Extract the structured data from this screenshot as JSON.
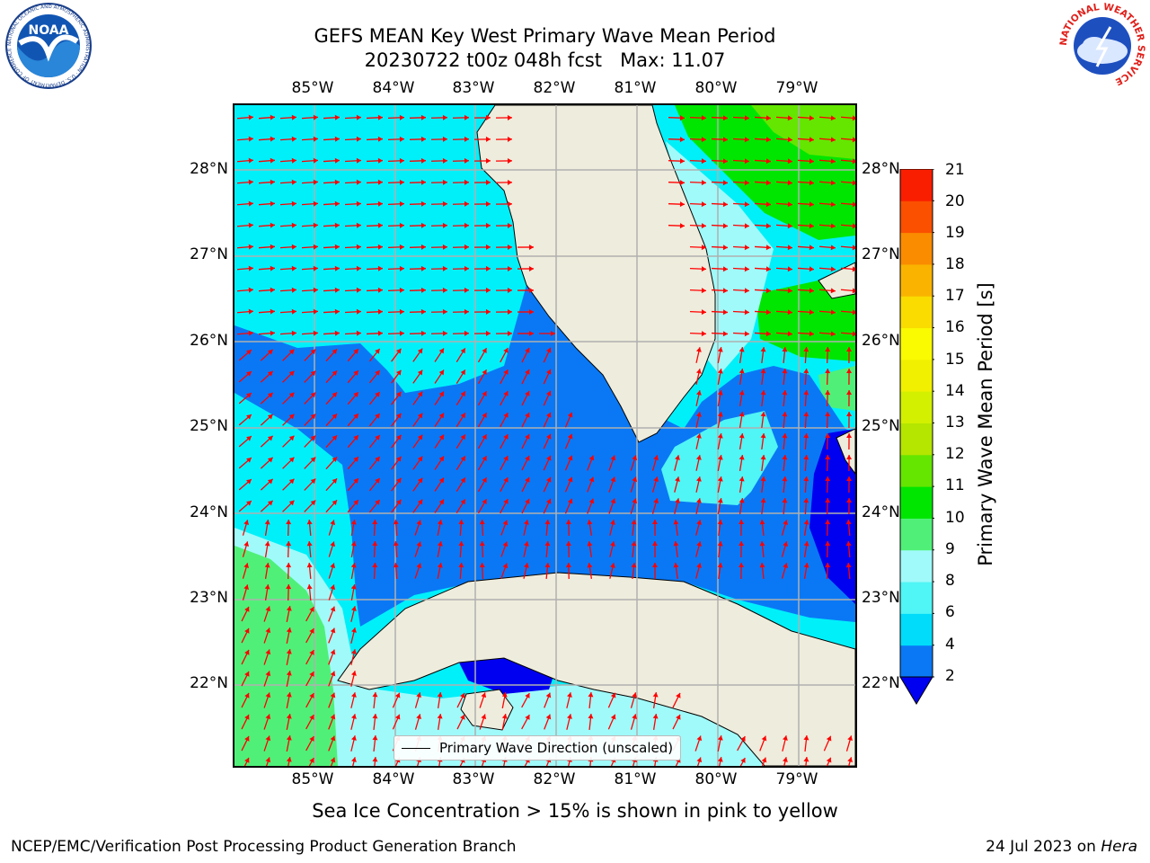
{
  "header": {
    "title": "GEFS MEAN Key West Primary Wave Mean Period",
    "subtitle": "20230722 t00z 048h fcst   Max: 11.07"
  },
  "logos": {
    "left": {
      "name": "NOAA",
      "ring_text": "NATIONAL OCEANIC AND ATMOSPHERIC ADMINISTRATION · U.S. DEPARTMENT OF COMMERCE"
    },
    "right": {
      "ring_text": "NATIONAL WEATHER SERVICE"
    }
  },
  "map": {
    "lon_labels": [
      "85°W",
      "84°W",
      "83°W",
      "82°W",
      "81°W",
      "80°W",
      "79°W"
    ],
    "lat_labels": [
      "28°N",
      "27°N",
      "26°N",
      "25°N",
      "24°N",
      "23°N",
      "22°N"
    ],
    "legend_label": "Primary Wave Direction (unscaled)",
    "colors": {
      "land": "#eeecdc",
      "arrows": "#ff0000",
      "grid": "#b0b0b0"
    }
  },
  "colorbar": {
    "label": "Primary Wave Mean Period [s]",
    "ticks": [
      "2",
      "4",
      "6",
      "8",
      "9",
      "10",
      "11",
      "12",
      "13",
      "14",
      "15",
      "16",
      "17",
      "18",
      "19",
      "20",
      "21"
    ],
    "colors": [
      "#0a78f5",
      "#00dcfa",
      "#50f5f5",
      "#a0fafa",
      "#50f078",
      "#00e600",
      "#64e600",
      "#b4e600",
      "#d2f000",
      "#f0f000",
      "#fafa00",
      "#fadc00",
      "#fab400",
      "#fa8c00",
      "#fa5000",
      "#fa1e00"
    ],
    "under_color": "#0000f0"
  },
  "footer": {
    "note": "Sea Ice Concentration > 15% is shown in pink to yellow",
    "credit": "NCEP/EMC/Verification Post Processing Product Generation Branch",
    "date": "24 Jul 2023 on ",
    "host": "Hera"
  }
}
